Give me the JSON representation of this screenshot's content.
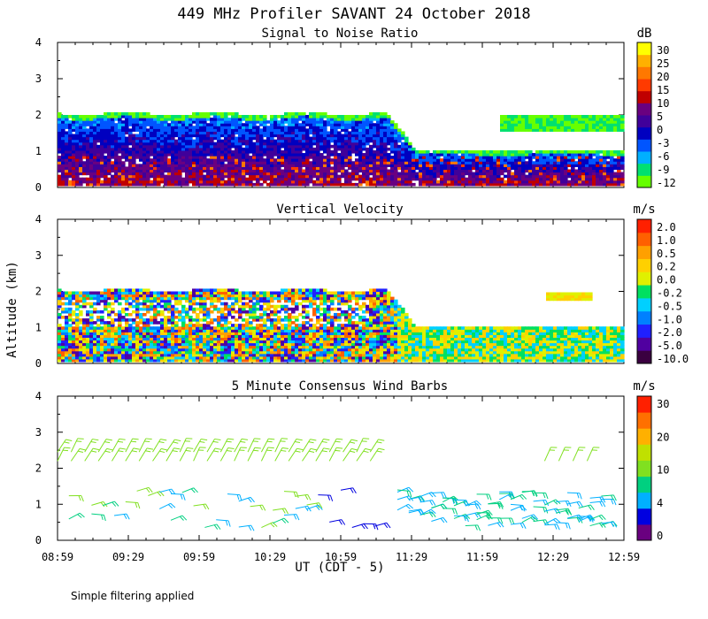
{
  "title": "449 MHz Profiler SAVANT 24 October 2018",
  "ylabel": "Altitude (km)",
  "xlabel": "UT  (CDT - 5)",
  "footer_note": "Simple filtering applied",
  "x_ticks": [
    "08:59",
    "09:29",
    "09:59",
    "10:29",
    "10:59",
    "11:29",
    "11:59",
    "12:29",
    "12:59"
  ],
  "y_ticks": [
    "0",
    "1",
    "2",
    "3",
    "4"
  ],
  "colors": {
    "snr": [
      "#66ff00",
      "#00e070",
      "#00b0ff",
      "#0055ff",
      "#0000c0",
      "#40009a",
      "#6a0080",
      "#c00000",
      "#ff3a00",
      "#ff7800",
      "#ffb000",
      "#ffff00"
    ],
    "vv": [
      "#3a0040",
      "#5000a0",
      "#2020ff",
      "#0080ff",
      "#00d0ff",
      "#00e060",
      "#e0f000",
      "#ffd000",
      "#ffa000",
      "#ff6000",
      "#ff2000"
    ],
    "wind": [
      "#6a0080",
      "#0000e0",
      "#00b0ff",
      "#00d080",
      "#80e020",
      "#c0e000",
      "#ffb000",
      "#ff7000",
      "#ff2000"
    ]
  },
  "chart_data": [
    {
      "type": "heatmap",
      "title": "Signal to Noise Ratio",
      "unit": "dB",
      "ylim": [
        0,
        4
      ],
      "xlim": [
        "08:59",
        "12:59"
      ],
      "colorbar_labels": [
        "30",
        "25",
        "20",
        "15",
        "10",
        "5",
        "0",
        "-3",
        "-6",
        "-9",
        "-12"
      ],
      "layer_top_km": {
        "early": 2.0,
        "late": 1.0,
        "upper_band_after_12:00_km": [
          1.5,
          2.0
        ]
      }
    },
    {
      "type": "heatmap",
      "title": "Vertical Velocity",
      "unit": "m/s",
      "ylim": [
        0,
        4
      ],
      "xlim": [
        "08:59",
        "12:59"
      ],
      "colorbar_labels": [
        "2.0",
        "1.0",
        "0.5",
        "0.2",
        "0.0",
        "-0.2",
        "-0.5",
        "-1.0",
        "-2.0",
        "-5.0",
        "-10.0"
      ],
      "layer_top_km": {
        "early": 2.0,
        "late": 1.0
      }
    },
    {
      "type": "scatter",
      "title": "5 Minute Consensus Wind Barbs",
      "unit": "m/s",
      "ylim": [
        0,
        4
      ],
      "xlim": [
        "08:59",
        "12:59"
      ],
      "colorbar_labels": [
        "30",
        "20",
        "10",
        "4",
        "0"
      ],
      "barb_layers_km": [
        2.3,
        2.5,
        0.5,
        0.8,
        1.1,
        1.3
      ]
    }
  ]
}
